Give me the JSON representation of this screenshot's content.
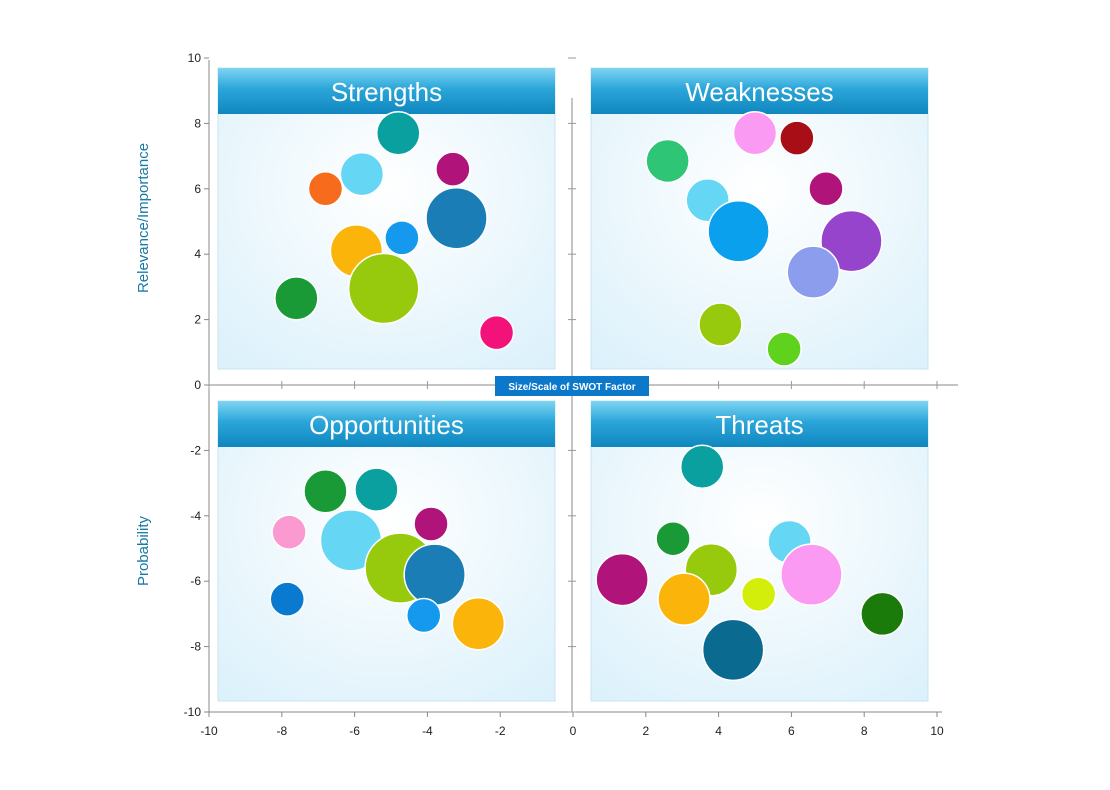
{
  "chart_data": {
    "type": "bubble",
    "xlim": [
      -10,
      10
    ],
    "ylim": [
      -10,
      10
    ],
    "x_ticks": [
      -10,
      -8,
      -6,
      -4,
      -2,
      0,
      2,
      4,
      6,
      8,
      10
    ],
    "y_ticks": [
      10,
      8,
      6,
      4,
      2,
      0,
      -2,
      -4,
      -6,
      -8,
      -10
    ],
    "y_label_top": "Relevance/Importance",
    "y_label_bottom": "Probability",
    "center_label": "Size/Scale of SWOT Factor",
    "quadrants": [
      {
        "title": "Strengths",
        "x_range": [
          -10,
          0
        ],
        "y_range": [
          0,
          10
        ],
        "bubbles": [
          {
            "x": -4.8,
            "y": 7.7,
            "size": 3,
            "color": "#0aa0a0"
          },
          {
            "x": -5.8,
            "y": 6.45,
            "size": 3,
            "color": "#66d6f5"
          },
          {
            "x": -6.8,
            "y": 6.0,
            "size": 2,
            "color": "#f76b1c"
          },
          {
            "x": -3.3,
            "y": 6.6,
            "size": 2,
            "color": "#b0137a"
          },
          {
            "x": -3.2,
            "y": 5.1,
            "size": 5,
            "color": "#1a7db5"
          },
          {
            "x": -4.7,
            "y": 4.5,
            "size": 2,
            "color": "#1599ee"
          },
          {
            "x": -5.95,
            "y": 4.1,
            "size": 4,
            "color": "#fbb50a"
          },
          {
            "x": -5.2,
            "y": 2.95,
            "size": 6,
            "color": "#97c90c"
          },
          {
            "x": -7.6,
            "y": 2.65,
            "size": 3,
            "color": "#1a9a37"
          },
          {
            "x": -2.1,
            "y": 1.6,
            "size": 2,
            "color": "#f2127a"
          }
        ]
      },
      {
        "title": "Weaknesses",
        "x_range": [
          0,
          10
        ],
        "y_range": [
          0,
          10
        ],
        "bubbles": [
          {
            "x": 5.0,
            "y": 7.7,
            "size": 3,
            "color": "#fb9af2"
          },
          {
            "x": 6.15,
            "y": 7.55,
            "size": 2,
            "color": "#a80e16"
          },
          {
            "x": 2.6,
            "y": 6.85,
            "size": 3,
            "color": "#2ec676"
          },
          {
            "x": 6.95,
            "y": 6.0,
            "size": 2,
            "color": "#b0137a"
          },
          {
            "x": 3.7,
            "y": 5.65,
            "size": 3,
            "color": "#66d6f5"
          },
          {
            "x": 4.55,
            "y": 4.7,
            "size": 5,
            "color": "#0aa0ee"
          },
          {
            "x": 7.65,
            "y": 4.4,
            "size": 5,
            "color": "#9644cc"
          },
          {
            "x": 6.6,
            "y": 3.45,
            "size": 4,
            "color": "#8c9ded"
          },
          {
            "x": 4.05,
            "y": 1.85,
            "size": 3,
            "color": "#97c90c"
          },
          {
            "x": 5.8,
            "y": 1.1,
            "size": 2,
            "color": "#5ed21c"
          }
        ]
      },
      {
        "title": "Opportunities",
        "x_range": [
          -10,
          0
        ],
        "y_range": [
          -10,
          0
        ],
        "bubbles": [
          {
            "x": -6.8,
            "y": -3.25,
            "size": 3,
            "color": "#1a9a37"
          },
          {
            "x": -5.4,
            "y": -3.2,
            "size": 3,
            "color": "#0aa0a0"
          },
          {
            "x": -3.9,
            "y": -4.25,
            "size": 2,
            "color": "#b0137a"
          },
          {
            "x": -7.8,
            "y": -4.5,
            "size": 2,
            "color": "#fb9ad0"
          },
          {
            "x": -6.1,
            "y": -4.75,
            "size": 5,
            "color": "#66d6f5"
          },
          {
            "x": -4.75,
            "y": -5.6,
            "size": 6,
            "color": "#97c90c"
          },
          {
            "x": -3.8,
            "y": -5.8,
            "size": 5,
            "color": "#1a7db5"
          },
          {
            "x": -7.85,
            "y": -6.55,
            "size": 2,
            "color": "#0a7ad0"
          },
          {
            "x": -4.1,
            "y": -7.05,
            "size": 2,
            "color": "#1599ee"
          },
          {
            "x": -2.6,
            "y": -7.3,
            "size": 4,
            "color": "#fbb50a"
          }
        ]
      },
      {
        "title": "Threats",
        "x_range": [
          0,
          10
        ],
        "y_range": [
          -10,
          0
        ],
        "bubbles": [
          {
            "x": 3.55,
            "y": -2.5,
            "size": 3,
            "color": "#0aa0a0"
          },
          {
            "x": 2.75,
            "y": -4.7,
            "size": 2,
            "color": "#1a9a37"
          },
          {
            "x": 5.95,
            "y": -4.8,
            "size": 3,
            "color": "#66d6f5"
          },
          {
            "x": 1.35,
            "y": -5.95,
            "size": 4,
            "color": "#b0137a"
          },
          {
            "x": 3.8,
            "y": -5.65,
            "size": 4,
            "color": "#97c90c"
          },
          {
            "x": 6.55,
            "y": -5.8,
            "size": 5,
            "color": "#fb9af2"
          },
          {
            "x": 3.05,
            "y": -6.55,
            "size": 4,
            "color": "#fbb50a"
          },
          {
            "x": 5.1,
            "y": -6.4,
            "size": 2,
            "color": "#d2ee0a"
          },
          {
            "x": 8.5,
            "y": -7.0,
            "size": 3,
            "color": "#1a7a0a"
          },
          {
            "x": 4.4,
            "y": -8.1,
            "size": 5,
            "color": "#0a6a90"
          }
        ]
      }
    ]
  }
}
